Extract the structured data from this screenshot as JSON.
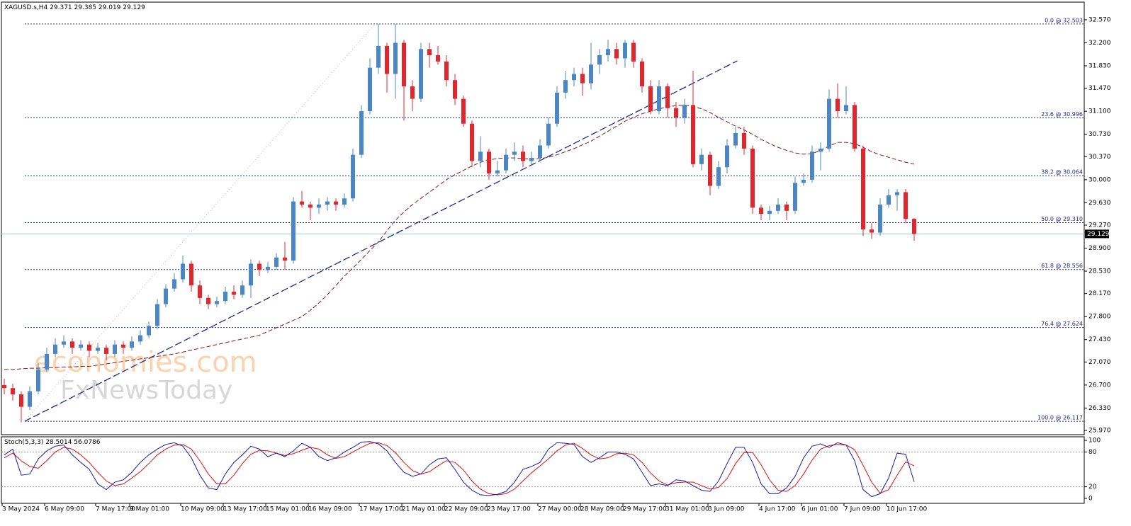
{
  "chart_data": {
    "type": "candlestick",
    "title": "XAGUSD.s,H4",
    "up_color": "#4a86c8",
    "down_color": "#e5252c",
    "categories": [
      "3 May 2024",
      null,
      null,
      null,
      null,
      "6 May 09:00",
      null,
      null,
      null,
      null,
      null,
      "7 May 17:00",
      null,
      null,
      null,
      "9 May 01:00",
      null,
      null,
      null,
      null,
      null,
      "10 May 09:00",
      null,
      null,
      null,
      null,
      "13 May 17:00",
      null,
      null,
      null,
      null,
      "15 May 01:00",
      null,
      null,
      null,
      null,
      "16 May 09:00",
      null,
      null,
      null,
      null,
      null,
      "17 May 17:00",
      null,
      null,
      null,
      null,
      "21 May 01:00",
      null,
      null,
      null,
      null,
      "22 May 09:00",
      null,
      null,
      null,
      null,
      "23 May 17:00",
      null,
      null,
      null,
      null,
      null,
      "27 May 00:00",
      null,
      null,
      null,
      null,
      "28 May 09:00",
      null,
      null,
      null,
      null,
      "29 May 17:00",
      null,
      null,
      null,
      null,
      "31 May 01:00",
      null,
      null,
      null,
      null,
      "3 Jun 09:00",
      null,
      null,
      null,
      null,
      null,
      "4 Jun 17:00",
      null,
      null,
      null,
      null,
      "6 Jun 01:00",
      null,
      null,
      null,
      null,
      "7 Jun 09:00",
      null,
      null,
      null,
      null,
      "10 Jun 17:00",
      null,
      null,
      null
    ],
    "ohlc": [
      [
        26.7,
        26.8,
        26.55,
        26.65
      ],
      [
        26.65,
        26.72,
        26.45,
        26.55
      ],
      [
        26.55,
        26.6,
        26.1,
        26.35
      ],
      [
        26.35,
        26.68,
        26.3,
        26.6
      ],
      [
        26.6,
        27.05,
        26.55,
        26.95
      ],
      [
        26.95,
        27.3,
        26.9,
        27.2
      ],
      [
        27.2,
        27.45,
        27.15,
        27.35
      ],
      [
        27.35,
        27.5,
        27.3,
        27.4
      ],
      [
        27.4,
        27.45,
        27.2,
        27.3
      ],
      [
        27.3,
        27.42,
        27.25,
        27.35
      ],
      [
        27.35,
        27.4,
        27.15,
        27.25
      ],
      [
        27.25,
        27.38,
        27.2,
        27.3
      ],
      [
        27.3,
        27.35,
        27.1,
        27.2
      ],
      [
        27.2,
        27.42,
        27.15,
        27.35
      ],
      [
        27.35,
        27.4,
        27.2,
        27.3
      ],
      [
        27.3,
        27.48,
        27.25,
        27.4
      ],
      [
        27.4,
        27.58,
        27.35,
        27.5
      ],
      [
        27.5,
        27.72,
        27.45,
        27.65
      ],
      [
        27.65,
        28.08,
        27.6,
        28.0
      ],
      [
        28.0,
        28.32,
        27.95,
        28.25
      ],
      [
        28.25,
        28.5,
        28.2,
        28.4
      ],
      [
        28.4,
        28.78,
        28.35,
        28.65
      ],
      [
        28.65,
        28.7,
        28.2,
        28.3
      ],
      [
        28.3,
        28.38,
        28.0,
        28.1
      ],
      [
        28.1,
        28.15,
        27.92,
        28.0
      ],
      [
        28.0,
        28.12,
        27.95,
        28.05
      ],
      [
        28.05,
        28.28,
        28.0,
        28.2
      ],
      [
        28.2,
        28.3,
        28.08,
        28.15
      ],
      [
        28.15,
        28.38,
        28.1,
        28.3
      ],
      [
        28.3,
        28.72,
        28.1,
        28.65
      ],
      [
        28.65,
        28.7,
        28.45,
        28.55
      ],
      [
        28.55,
        28.68,
        28.5,
        28.6
      ],
      [
        28.6,
        28.82,
        28.55,
        28.75
      ],
      [
        28.75,
        29.0,
        28.55,
        28.7
      ],
      [
        28.7,
        29.72,
        28.65,
        29.65
      ],
      [
        29.65,
        29.82,
        29.55,
        29.6
      ],
      [
        29.6,
        29.65,
        29.35,
        29.55
      ],
      [
        29.55,
        29.7,
        29.45,
        29.6
      ],
      [
        29.6,
        29.72,
        29.5,
        29.65
      ],
      [
        29.65,
        29.7,
        29.5,
        29.6
      ],
      [
        29.6,
        29.78,
        29.55,
        29.7
      ],
      [
        29.7,
        30.5,
        29.65,
        30.4
      ],
      [
        30.4,
        31.2,
        30.35,
        31.1
      ],
      [
        31.1,
        31.95,
        31.05,
        31.8
      ],
      [
        31.8,
        32.5,
        31.7,
        32.15
      ],
      [
        32.15,
        32.2,
        31.4,
        31.7
      ],
      [
        31.7,
        32.5,
        31.3,
        32.2
      ],
      [
        32.2,
        32.25,
        30.95,
        31.5
      ],
      [
        31.5,
        31.6,
        31.1,
        31.3
      ],
      [
        31.3,
        32.2,
        31.25,
        32.1
      ],
      [
        32.1,
        32.2,
        31.8,
        32.0
      ],
      [
        32.0,
        32.15,
        31.85,
        31.9
      ],
      [
        31.9,
        32.0,
        31.5,
        31.6
      ],
      [
        31.6,
        31.7,
        31.2,
        31.3
      ],
      [
        31.3,
        31.35,
        30.85,
        30.9
      ],
      [
        30.9,
        30.95,
        30.2,
        30.3
      ],
      [
        30.3,
        30.7,
        30.2,
        30.45
      ],
      [
        30.45,
        30.5,
        30.0,
        30.1
      ],
      [
        30.1,
        30.3,
        30.05,
        30.15
      ],
      [
        30.15,
        30.5,
        30.1,
        30.4
      ],
      [
        30.4,
        30.6,
        30.3,
        30.45
      ],
      [
        30.45,
        30.55,
        30.2,
        30.3
      ],
      [
        30.3,
        30.45,
        30.22,
        30.35
      ],
      [
        30.35,
        30.65,
        30.3,
        30.55
      ],
      [
        30.55,
        31.0,
        30.5,
        30.9
      ],
      [
        30.9,
        31.5,
        30.85,
        31.4
      ],
      [
        31.4,
        31.75,
        31.3,
        31.6
      ],
      [
        31.6,
        31.8,
        31.5,
        31.7
      ],
      [
        31.7,
        31.8,
        31.35,
        31.55
      ],
      [
        31.55,
        32.2,
        31.45,
        31.85
      ],
      [
        31.85,
        32.1,
        31.7,
        32.0
      ],
      [
        32.0,
        32.25,
        31.9,
        32.1
      ],
      [
        32.1,
        32.2,
        31.85,
        31.95
      ],
      [
        31.95,
        32.25,
        31.8,
        32.2
      ],
      [
        32.2,
        32.25,
        31.8,
        31.9
      ],
      [
        31.9,
        31.95,
        31.4,
        31.5
      ],
      [
        31.5,
        31.6,
        31.05,
        31.1
      ],
      [
        31.1,
        31.6,
        31.05,
        31.5
      ],
      [
        31.5,
        31.55,
        31.0,
        31.15
      ],
      [
        31.15,
        31.25,
        30.85,
        31.0
      ],
      [
        31.0,
        31.3,
        30.9,
        31.2
      ],
      [
        31.2,
        31.75,
        30.2,
        30.25
      ],
      [
        30.25,
        30.5,
        30.15,
        30.4
      ],
      [
        30.4,
        30.45,
        29.75,
        29.9
      ],
      [
        29.9,
        30.3,
        29.85,
        30.2
      ],
      [
        30.2,
        30.65,
        30.1,
        30.55
      ],
      [
        30.55,
        30.85,
        30.5,
        30.75
      ],
      [
        30.75,
        30.85,
        30.4,
        30.5
      ],
      [
        30.5,
        30.55,
        29.45,
        29.55
      ],
      [
        29.55,
        29.6,
        29.35,
        29.45
      ],
      [
        29.45,
        29.58,
        29.35,
        29.5
      ],
      [
        29.5,
        29.7,
        29.45,
        29.6
      ],
      [
        29.6,
        29.65,
        29.35,
        29.5
      ],
      [
        29.5,
        30.05,
        29.45,
        29.95
      ],
      [
        29.95,
        30.1,
        29.9,
        30.0
      ],
      [
        30.0,
        30.55,
        29.95,
        30.45
      ],
      [
        30.45,
        30.6,
        30.15,
        30.5
      ],
      [
        30.5,
        31.45,
        30.45,
        31.3
      ],
      [
        31.3,
        31.55,
        31.0,
        31.1
      ],
      [
        31.1,
        31.5,
        31.05,
        31.2
      ],
      [
        31.2,
        31.25,
        30.45,
        30.5
      ],
      [
        30.5,
        30.55,
        29.1,
        29.2
      ],
      [
        29.2,
        29.3,
        29.05,
        29.15
      ],
      [
        29.15,
        29.7,
        29.1,
        29.6
      ],
      [
        29.6,
        29.85,
        29.55,
        29.75
      ],
      [
        29.75,
        29.85,
        29.5,
        29.8
      ],
      [
        29.8,
        29.85,
        29.3,
        29.37
      ],
      [
        29.371,
        29.385,
        29.019,
        29.129
      ]
    ],
    "ma": {
      "color": "#8b1a1a",
      "values": [
        26.95,
        26.95,
        26.96,
        26.97,
        26.97,
        26.98,
        26.98,
        26.99,
        26.99,
        27.0,
        27.0,
        27.02,
        27.04,
        27.06,
        27.08,
        27.1,
        27.12,
        27.14,
        27.16,
        27.18,
        27.2,
        27.23,
        27.26,
        27.29,
        27.32,
        27.35,
        27.38,
        27.41,
        27.44,
        27.47,
        27.5,
        27.56,
        27.62,
        27.68,
        27.74,
        27.8,
        27.9,
        28.02,
        28.15,
        28.3,
        28.45,
        28.58,
        28.72,
        28.86,
        29.0,
        29.18,
        29.35,
        29.48,
        29.6,
        29.7,
        29.8,
        29.9,
        30.0,
        30.08,
        30.15,
        30.22,
        30.28,
        30.32,
        30.34,
        30.35,
        30.35,
        30.34,
        30.33,
        30.34,
        30.36,
        30.4,
        30.45,
        30.5,
        30.56,
        30.62,
        30.7,
        30.78,
        30.86,
        30.94,
        31.0,
        31.06,
        31.1,
        31.14,
        31.17,
        31.19,
        31.2,
        31.18,
        31.14,
        31.08,
        31.0,
        30.93,
        30.86,
        30.8,
        30.73,
        30.65,
        30.58,
        30.52,
        30.47,
        30.43,
        30.41,
        30.42,
        30.47,
        30.54,
        30.6,
        30.6,
        30.58,
        30.52,
        30.45,
        30.4,
        30.36,
        30.32,
        30.28,
        30.25
      ]
    },
    "trendline": {
      "color": "#1f2a8a",
      "x": [
        2.4,
        86.2
      ],
      "y": [
        26.117,
        31.91
      ]
    },
    "fib_anchor_x": [
      2.4,
      43.6
    ],
    "fib_color": "#1f2a8a",
    "fib_levels": [
      {
        "value": 32.503,
        "label": "0.0 @ 32.503"
      },
      {
        "value": 30.996,
        "label": "23.6 @ 30.996"
      },
      {
        "value": 30.064,
        "label": "38.2 @ 30.064"
      },
      {
        "value": 29.31,
        "label": "50.0 @ 29.310"
      },
      {
        "value": 28.556,
        "label": "61.8 @ 28.556"
      },
      {
        "value": 27.624,
        "label": "76.4 @ 27.624"
      },
      {
        "value": 26.117,
        "label": "100.0 @ 26.117"
      }
    ],
    "ylim": [
      25.902,
      32.854
    ],
    "yticks": [
      {
        "value": 32.57,
        "label": "32.570"
      },
      {
        "value": 32.2,
        "label": "32.200"
      },
      {
        "value": 31.83,
        "label": "31.830"
      },
      {
        "value": 31.47,
        "label": "31.470"
      },
      {
        "value": 31.1,
        "label": "31.100"
      },
      {
        "value": 30.73,
        "label": "30.730"
      },
      {
        "value": 30.37,
        "label": "30.370"
      },
      {
        "value": 30.0,
        "label": "30.000"
      },
      {
        "value": 29.63,
        "label": "29.630"
      },
      {
        "value": 29.27,
        "label": "29.270"
      },
      {
        "value": 28.9,
        "label": "28.900"
      },
      {
        "value": 28.53,
        "label": "28.530"
      },
      {
        "value": 28.17,
        "label": "28.170"
      },
      {
        "value": 27.8,
        "label": "27.800"
      },
      {
        "value": 27.43,
        "label": "27.430"
      },
      {
        "value": 27.07,
        "label": "27.070"
      },
      {
        "value": 26.7,
        "label": "26.700"
      },
      {
        "value": 26.33,
        "label": "26.330"
      },
      {
        "value": 25.97,
        "label": "25.970"
      }
    ],
    "watermark": [
      "economies.com",
      "FxNewsToday"
    ],
    "stoch": {
      "name": "Stoch(5,3,3)",
      "ylim": [
        -8.6,
        106.2
      ],
      "yticks": [
        0,
        20,
        80,
        100
      ],
      "levels": [
        20,
        80
      ],
      "k": {
        "color": "#1a1aa8",
        "values": [
          75,
          85,
          40,
          42,
          68,
          82,
          90,
          92,
          75,
          62,
          50,
          25,
          15,
          28,
          32,
          45,
          62,
          75,
          85,
          93,
          96,
          90,
          70,
          40,
          18,
          15,
          42,
          62,
          75,
          90,
          85,
          72,
          78,
          72,
          82,
          95,
          88,
          72,
          65,
          70,
          80,
          88,
          97,
          98,
          94,
          82,
          62,
          45,
          38,
          42,
          58,
          68,
          70,
          50,
          28,
          14,
          6,
          5,
          7,
          12,
          28,
          50,
          55,
          62,
          85,
          96,
          95,
          93,
          72,
          62,
          70,
          80,
          80,
          76,
          68,
          45,
          22,
          25,
          22,
          32,
          30,
          22,
          14,
          12,
          30,
          60,
          88,
          88,
          62,
          25,
          8,
          8,
          18,
          38,
          70,
          90,
          94,
          88,
          96,
          92,
          65,
          15,
          3,
          8,
          35,
          78,
          76,
          28.5014
        ]
      },
      "d": {
        "color": "#e01010",
        "values": [
          70,
          78,
          65,
          55,
          52,
          65,
          80,
          88,
          85,
          75,
          62,
          45,
          30,
          22,
          25,
          35,
          46,
          60,
          75,
          85,
          92,
          93,
          85,
          65,
          42,
          25,
          25,
          40,
          60,
          76,
          83,
          82,
          78,
          74,
          77,
          83,
          88,
          85,
          75,
          69,
          72,
          80,
          88,
          95,
          96,
          91,
          79,
          62,
          48,
          42,
          46,
          56,
          65,
          62,
          49,
          30,
          16,
          8,
          6,
          8,
          16,
          30,
          44,
          56,
          68,
          82,
          92,
          95,
          86,
          75,
          68,
          70,
          77,
          78,
          75,
          62,
          44,
          30,
          23,
          27,
          28,
          28,
          22,
          16,
          19,
          34,
          60,
          79,
          79,
          58,
          32,
          14,
          12,
          22,
          42,
          66,
          85,
          91,
          93,
          92,
          84,
          57,
          28,
          9,
          15,
          40,
          63,
          56.0786
        ]
      }
    }
  }
}
